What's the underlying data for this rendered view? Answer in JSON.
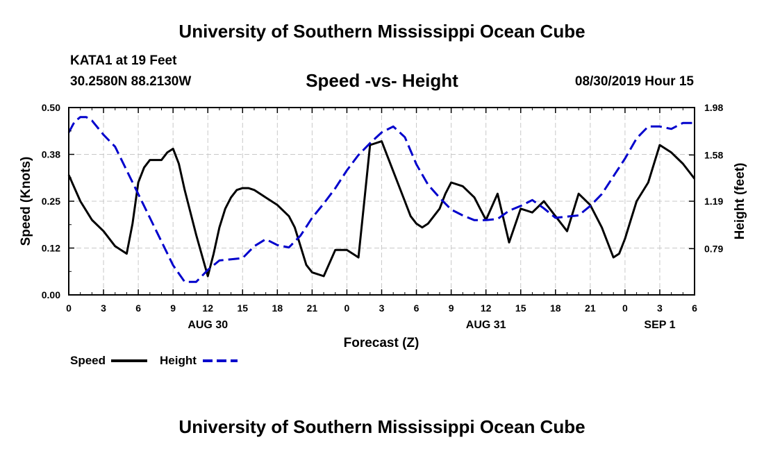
{
  "header": {
    "top_title": "University of Southern Mississippi Ocean Cube",
    "station": "KATA1 at 19 Feet",
    "coords": "30.2580N 88.2130W",
    "chart_title": "Speed -vs- Height",
    "date": "08/30/2019 Hour 15",
    "bottom_title": "University of Southern Mississippi Ocean Cube"
  },
  "chart_data": {
    "type": "line",
    "title": "Speed -vs- Height",
    "xlabel": "Forecast (Z)",
    "ylabel": "Speed (Knots)",
    "y2label": "Height (feet)",
    "xlim": [
      0,
      54
    ],
    "ylim": [
      0,
      0.5
    ],
    "y2lim": [
      0.4,
      1.98
    ],
    "x_ticks": [
      0,
      3,
      6,
      9,
      12,
      15,
      18,
      21,
      24,
      27,
      30,
      33,
      36,
      39,
      42,
      45,
      48,
      51,
      54
    ],
    "x_tick_labels": [
      "0",
      "3",
      "6",
      "9",
      "12",
      "15",
      "18",
      "21",
      "0",
      "3",
      "6",
      "9",
      "12",
      "15",
      "18",
      "21",
      "0",
      "3",
      "6"
    ],
    "y_ticks": [
      0,
      0.125,
      0.25,
      0.375,
      0.5
    ],
    "y_tick_labels": [
      "0.00",
      "0.12",
      "0.25",
      "0.38",
      "0.50"
    ],
    "y2_ticks": [
      0.79,
      1.19,
      1.58,
      1.98
    ],
    "y2_tick_labels": [
      "0.79",
      "1.19",
      "1.58",
      "1.98"
    ],
    "date_labels": [
      {
        "x": 12,
        "text": "AUG 30"
      },
      {
        "x": 36,
        "text": "AUG 31"
      },
      {
        "x": 51,
        "text": "SEP 1"
      }
    ],
    "grid": true,
    "legend": [
      "Speed",
      "Height"
    ],
    "series": [
      {
        "name": "Speed",
        "axis": "left",
        "color": "#000000",
        "style": "solid",
        "x": [
          0,
          1,
          2,
          3,
          4,
          5,
          5.5,
          6,
          6.5,
          7,
          8,
          8.5,
          9,
          9.5,
          10,
          11,
          12,
          12.5,
          13,
          13.5,
          14,
          14.5,
          15,
          15.5,
          16,
          17,
          18,
          19,
          19.5,
          20,
          20.5,
          21,
          22,
          23,
          24,
          24.5,
          25,
          25.5,
          26,
          27,
          28,
          29,
          29.5,
          30,
          30.5,
          31,
          32,
          32.5,
          33,
          34,
          35,
          35.5,
          36,
          37,
          38,
          39,
          40,
          41,
          42,
          43,
          44,
          45,
          46,
          47,
          47.5,
          48,
          48.5,
          49,
          50,
          51,
          52,
          53,
          54
        ],
        "values": [
          0.32,
          0.25,
          0.2,
          0.17,
          0.13,
          0.11,
          0.19,
          0.3,
          0.34,
          0.36,
          0.36,
          0.38,
          0.39,
          0.35,
          0.28,
          0.16,
          0.05,
          0.11,
          0.18,
          0.23,
          0.26,
          0.28,
          0.285,
          0.285,
          0.28,
          0.26,
          0.24,
          0.21,
          0.18,
          0.13,
          0.08,
          0.06,
          0.05,
          0.12,
          0.12,
          0.11,
          0.1,
          0.25,
          0.4,
          0.41,
          0.33,
          0.25,
          0.21,
          0.19,
          0.18,
          0.19,
          0.23,
          0.27,
          0.3,
          0.29,
          0.26,
          0.23,
          0.2,
          0.27,
          0.14,
          0.23,
          0.22,
          0.25,
          0.21,
          0.17,
          0.27,
          0.24,
          0.18,
          0.1,
          0.11,
          0.15,
          0.2,
          0.25,
          0.3,
          0.4,
          0.38,
          0.35,
          0.31
        ]
      },
      {
        "name": "Height",
        "axis": "right",
        "color": "#0000cc",
        "style": "dashed",
        "x": [
          0,
          0.5,
          1,
          1.5,
          2,
          3,
          4,
          5,
          6,
          7,
          8,
          9,
          10,
          11,
          12,
          13,
          14,
          15,
          16,
          17,
          18,
          19,
          20,
          21,
          22,
          23,
          24,
          25,
          26,
          27,
          28,
          29,
          30,
          31,
          32,
          33,
          34,
          35,
          36,
          37,
          38,
          39,
          40,
          41,
          42,
          43,
          44,
          45,
          46,
          47,
          48,
          49,
          50,
          51,
          52,
          53,
          54
        ],
        "values": [
          1.77,
          1.86,
          1.9,
          1.9,
          1.87,
          1.75,
          1.65,
          1.45,
          1.25,
          1.05,
          0.85,
          0.65,
          0.51,
          0.51,
          0.61,
          0.69,
          0.7,
          0.71,
          0.81,
          0.87,
          0.82,
          0.8,
          0.9,
          1.05,
          1.17,
          1.3,
          1.45,
          1.58,
          1.68,
          1.77,
          1.82,
          1.73,
          1.5,
          1.33,
          1.22,
          1.12,
          1.07,
          1.03,
          1.03,
          1.04,
          1.11,
          1.15,
          1.2,
          1.13,
          1.05,
          1.06,
          1.07,
          1.15,
          1.25,
          1.4,
          1.55,
          1.72,
          1.82,
          1.82,
          1.8,
          1.85,
          1.85
        ]
      }
    ]
  }
}
